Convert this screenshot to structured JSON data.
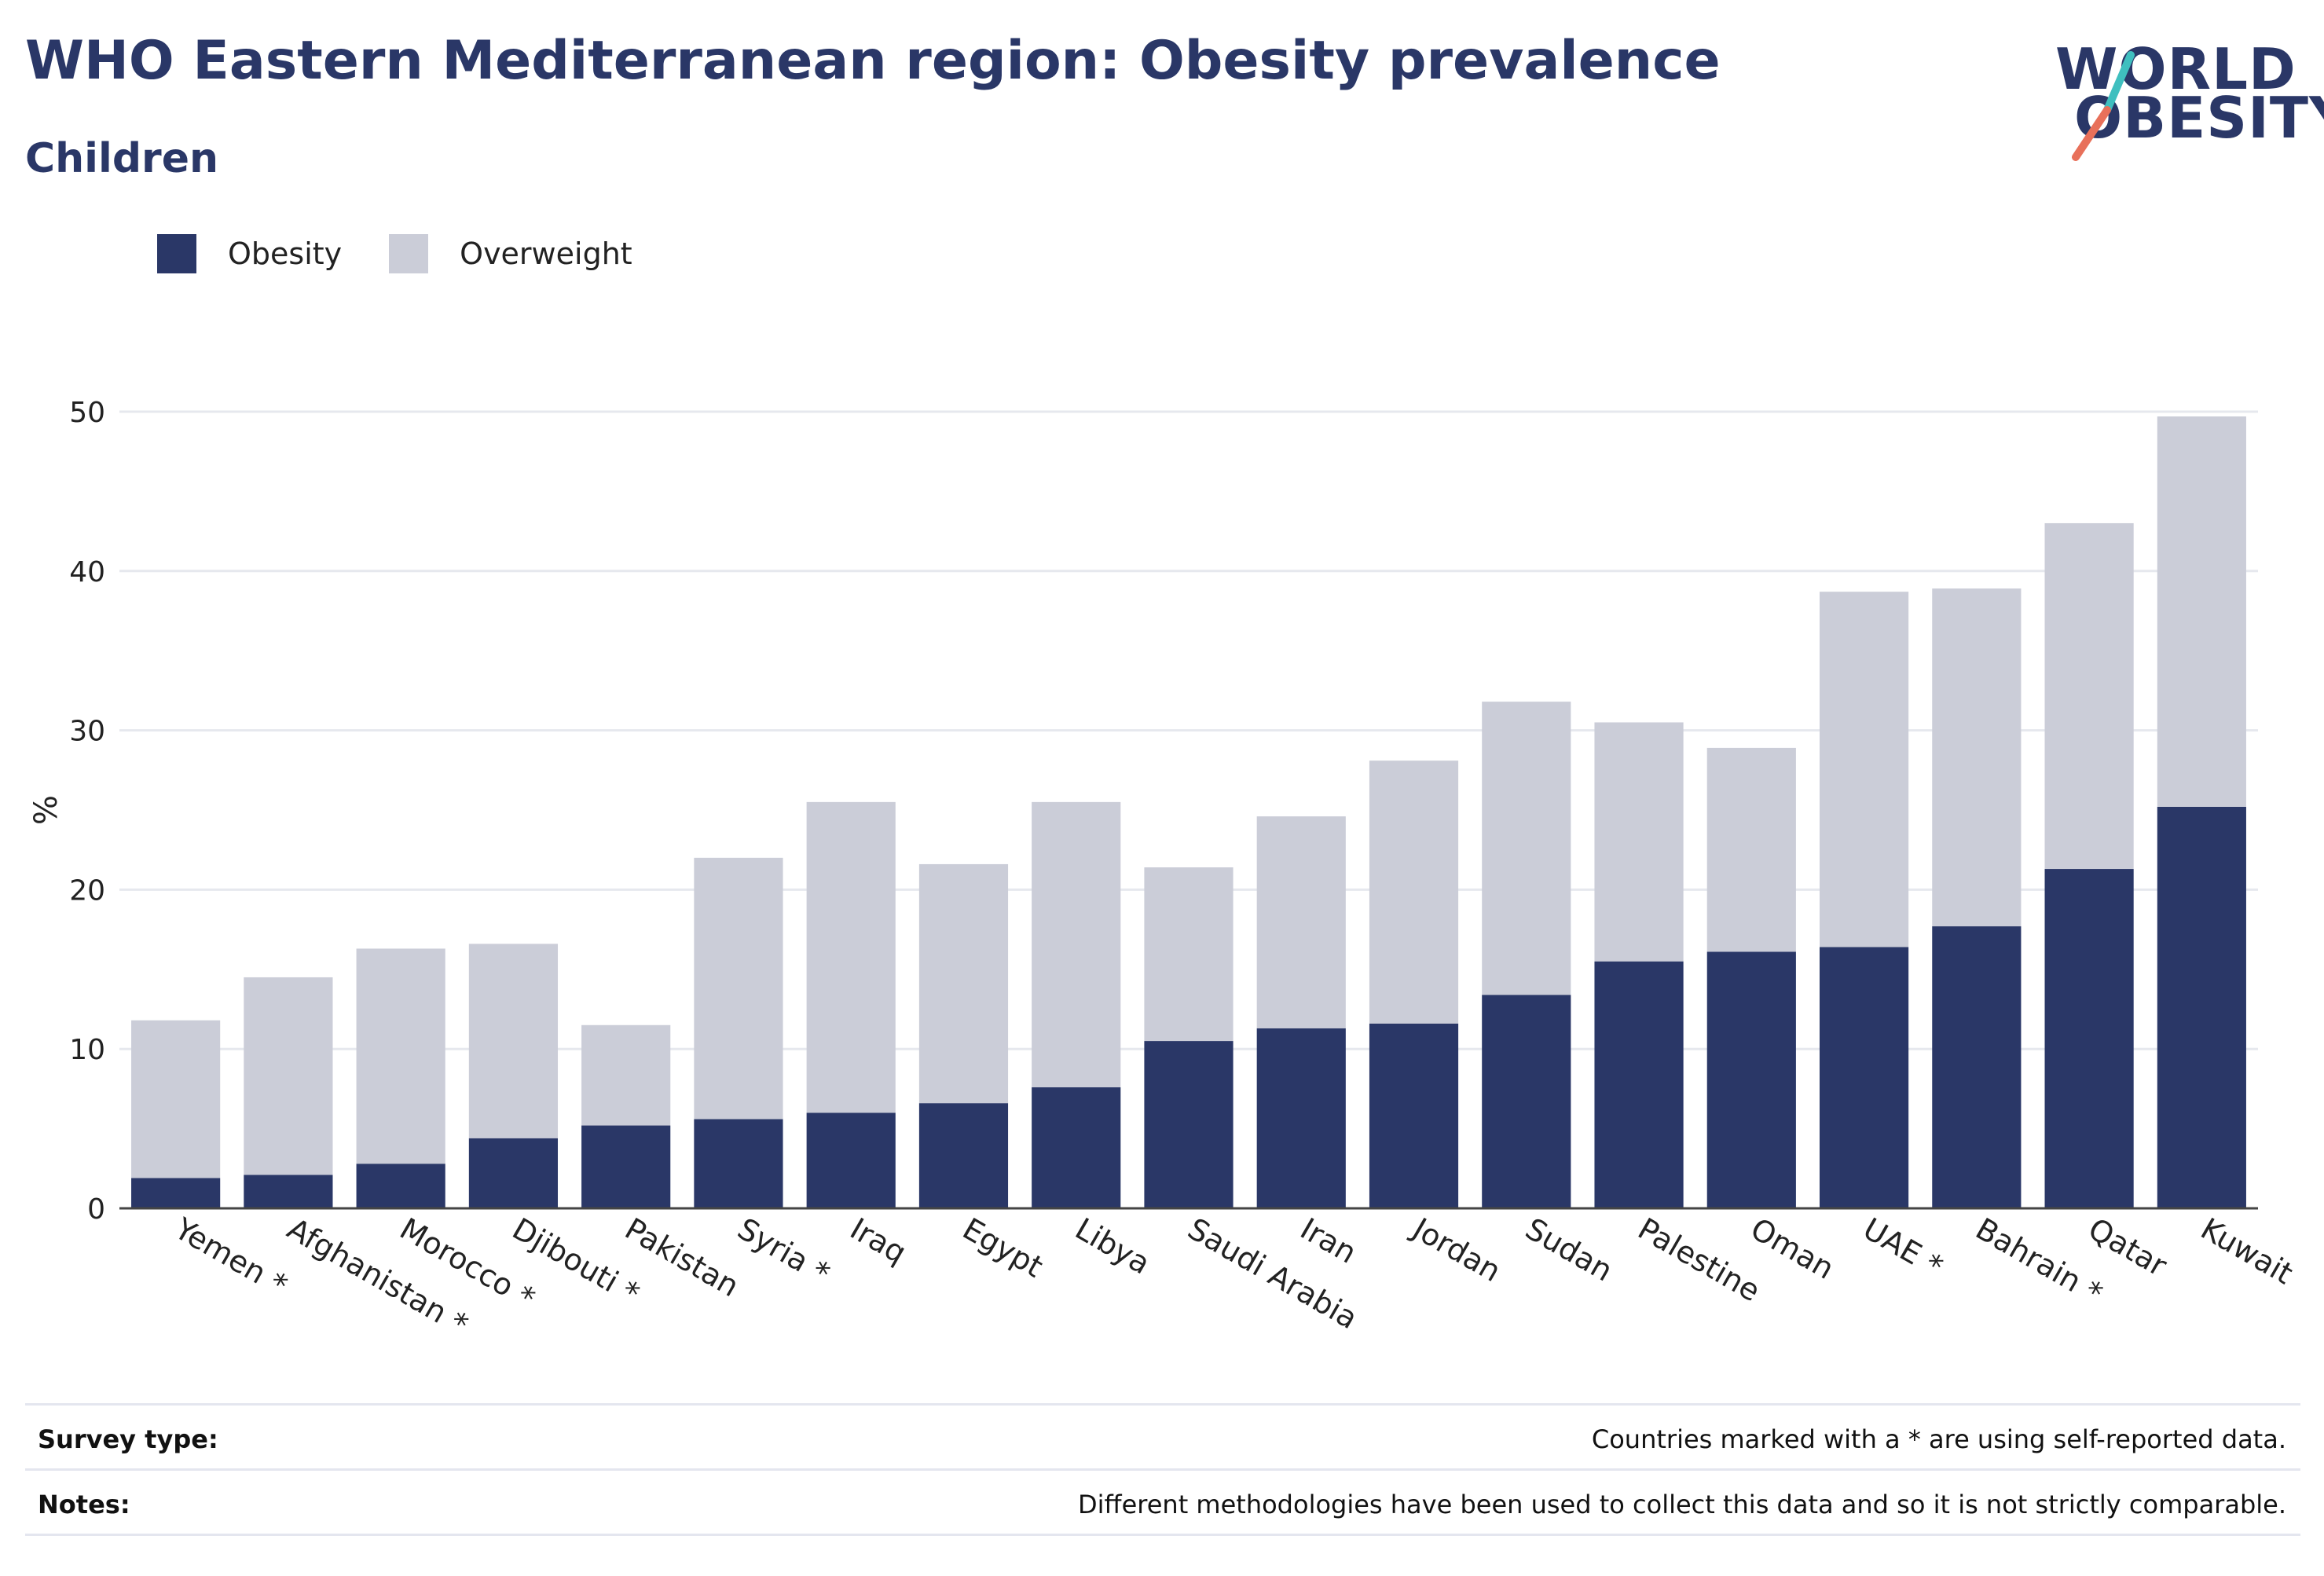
{
  "header": {
    "title": "WHO Eastern Mediterranean region: Obesity prevalence",
    "subtitle": "Children"
  },
  "logo": {
    "line1": "WORLD",
    "line2": "OBESITY",
    "accent1": "#3fbfbf",
    "accent2": "#e8705a"
  },
  "legend": [
    {
      "label": "Obesity",
      "color": "#2a3767"
    },
    {
      "label": "Overweight",
      "color": "#cbcdd8"
    }
  ],
  "chart_data": {
    "type": "bar",
    "stacked": true,
    "ylabel": "%",
    "ylim": [
      0,
      50
    ],
    "yticks": [
      0,
      10,
      20,
      30,
      40,
      50
    ],
    "grid": true,
    "legend_position": "top-left",
    "categories": [
      "Yemen *",
      "Afghanistan *",
      "Morocco *",
      "Djibouti *",
      "Pakistan",
      "Syria *",
      "Iraq",
      "Egypt",
      "Libya",
      "Saudi Arabia",
      "Iran",
      "Jordan",
      "Sudan",
      "Palestine",
      "Oman",
      "UAE *",
      "Bahrain *",
      "Qatar",
      "Kuwait"
    ],
    "series": [
      {
        "name": "Obesity",
        "color": "#2a3767",
        "values": [
          1.9,
          2.1,
          2.8,
          4.4,
          5.2,
          5.6,
          6.0,
          6.6,
          7.6,
          10.5,
          11.3,
          11.6,
          13.4,
          15.5,
          16.1,
          16.4,
          17.7,
          21.3,
          25.2
        ]
      },
      {
        "name": "Overweight",
        "color": "#cbcdd8",
        "values": [
          9.9,
          12.4,
          13.5,
          12.2,
          6.3,
          16.4,
          19.5,
          15.0,
          17.9,
          10.9,
          13.3,
          16.5,
          18.4,
          15.0,
          12.8,
          22.3,
          21.2,
          21.7,
          24.5
        ]
      }
    ]
  },
  "footer": {
    "survey_label": "Survey type:",
    "survey_value": "Countries marked with a * are using self-reported data.",
    "notes_label": "Notes:",
    "notes_value": "Different methodologies have been used to collect this data and so it is not strictly comparable."
  }
}
